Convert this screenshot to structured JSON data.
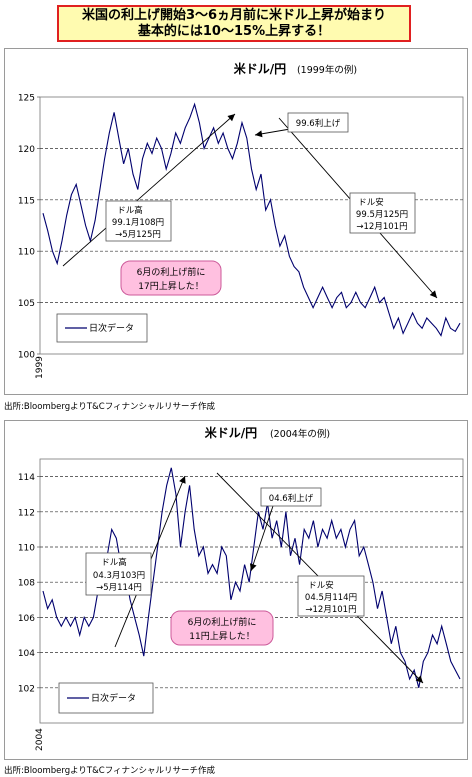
{
  "header": {
    "line1": "米国の利上げ開始3～6ヵ月前に米ドル上昇が始まり",
    "line2": "基本的には10～15%上昇する！"
  },
  "colors": {
    "line": "#00006e",
    "banner_border": "#e02020",
    "banner_bg": "#fffbb0",
    "bubble_fill": "#ffc0e0",
    "bubble_border": "#cc5a9a"
  },
  "chart_data": [
    {
      "type": "line",
      "title": "米ドル/円",
      "subtitle": "(1999年の例)",
      "x_label": "1999",
      "ylim": [
        100,
        125
      ],
      "yticks": [
        100,
        105,
        110,
        115,
        120,
        125
      ],
      "grid": "dashed horizontal",
      "legend": "日次データ",
      "legend_position": "bottom-left",
      "source": "出所:BloombergよりT&Cフィナンシャルリサーチ作成",
      "series": [
        {
          "values": [
            113.7,
            112.0,
            110.0,
            108.8,
            111.0,
            113.5,
            115.5,
            116.5,
            114.5,
            112.5,
            111.0,
            113.0,
            116.0,
            119.0,
            121.5,
            123.5,
            121.0,
            118.5,
            120.0,
            117.5,
            116.0,
            119.0,
            120.5,
            119.5,
            121.0,
            120.0,
            118.0,
            119.5,
            121.5,
            120.5,
            122.0,
            123.0,
            124.3,
            122.5,
            120.0,
            121.0,
            122.0,
            120.5,
            121.5,
            120.0,
            119.0,
            120.5,
            122.5,
            121.0,
            118.0,
            116.0,
            117.5,
            114.0,
            115.0,
            112.5,
            110.5,
            111.5,
            109.5,
            108.5,
            108.0,
            106.5,
            105.5,
            104.5,
            105.5,
            106.5,
            105.5,
            104.5,
            105.5,
            106.0,
            104.5,
            105.0,
            106.0,
            105.0,
            104.5,
            105.5,
            106.5,
            105.0,
            105.5,
            104.0,
            102.5,
            103.5,
            102.0,
            103.0,
            104.0,
            103.0,
            102.5,
            103.5,
            103.0,
            102.5,
            101.8,
            103.5,
            102.5,
            102.2,
            103.0
          ]
        }
      ],
      "annotations": {
        "rate_hike": "99.6利上げ",
        "usd_strong_title": "ドル高",
        "usd_strong_l1": "99.1月108円",
        "usd_strong_l2": "→5月125円",
        "usd_weak_title": "ドル安",
        "usd_weak_l1": "99.5月125円",
        "usd_weak_l2": "→12月101円",
        "bubble_l1": "6月の利上げ前に",
        "bubble_l2": "17円上昇した！"
      }
    },
    {
      "type": "line",
      "title": "米ドル/円",
      "subtitle": "(2004年の例)",
      "x_label": "2004",
      "ylim": [
        100,
        115
      ],
      "yticks": [
        102,
        104,
        106,
        108,
        110,
        112,
        114
      ],
      "grid": "dashed horizontal",
      "legend": "日次データ",
      "legend_position": "bottom-left",
      "source": "出所:BloombergよりT&Cフィナンシャルリサーチ作成",
      "series": [
        {
          "values": [
            107.5,
            106.5,
            107.0,
            106.0,
            105.5,
            106.0,
            105.5,
            106.0,
            105.0,
            106.0,
            105.5,
            106.0,
            107.5,
            108.5,
            109.5,
            111.0,
            110.5,
            109.0,
            108.5,
            107.0,
            106.0,
            105.0,
            103.8,
            106.0,
            108.0,
            110.0,
            112.0,
            113.5,
            114.5,
            113.0,
            110.0,
            112.0,
            113.5,
            111.0,
            109.5,
            110.0,
            108.5,
            109.0,
            108.5,
            110.0,
            109.5,
            107.0,
            108.0,
            107.5,
            109.0,
            108.0,
            110.0,
            112.0,
            111.0,
            112.5,
            110.5,
            111.5,
            110.0,
            112.0,
            109.5,
            110.5,
            109.0,
            111.0,
            110.5,
            111.5,
            110.0,
            111.0,
            110.5,
            111.5,
            110.5,
            111.0,
            110.0,
            111.0,
            111.5,
            109.5,
            110.0,
            109.0,
            108.0,
            106.5,
            107.5,
            106.0,
            104.5,
            105.5,
            104.0,
            103.5,
            102.5,
            103.0,
            102.0,
            103.5,
            104.0,
            105.0,
            104.5,
            105.5,
            104.5,
            103.5,
            103.0,
            102.5
          ]
        }
      ],
      "annotations": {
        "rate_hike": "04.6利上げ",
        "usd_strong_title": "ドル高",
        "usd_strong_l1": "04.3月103円",
        "usd_strong_l2": "→5月114円",
        "usd_weak_title": "ドル安",
        "usd_weak_l1": "04.5月114円",
        "usd_weak_l2": "→12月101円",
        "bubble_l1": "6月の利上げ前に",
        "bubble_l2": "11円上昇した！"
      }
    }
  ]
}
